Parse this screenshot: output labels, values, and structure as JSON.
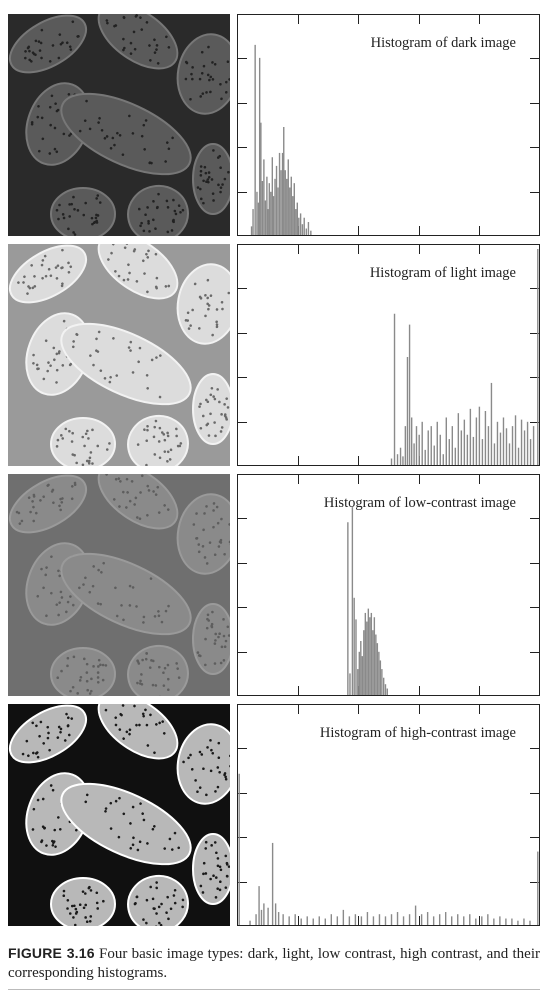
{
  "panels": [
    {
      "key": "dark",
      "title": "Histogram of dark image",
      "photo": {
        "bg": "#2a2a2a",
        "fill": "#5a5a5a",
        "edge": "#777777",
        "dots": "#222222"
      },
      "histogram": [
        {
          "x": 0.045,
          "h": 0.04
        },
        {
          "x": 0.05,
          "h": 0.12
        },
        {
          "x": 0.057,
          "h": 0.88
        },
        {
          "x": 0.063,
          "h": 0.2
        },
        {
          "x": 0.068,
          "h": 0.15
        },
        {
          "x": 0.072,
          "h": 0.82
        },
        {
          "x": 0.076,
          "h": 0.52
        },
        {
          "x": 0.081,
          "h": 0.25
        },
        {
          "x": 0.086,
          "h": 0.35
        },
        {
          "x": 0.091,
          "h": 0.16
        },
        {
          "x": 0.096,
          "h": 0.27
        },
        {
          "x": 0.1,
          "h": 0.12
        },
        {
          "x": 0.104,
          "h": 0.24
        },
        {
          "x": 0.109,
          "h": 0.2
        },
        {
          "x": 0.114,
          "h": 0.36
        },
        {
          "x": 0.118,
          "h": 0.18
        },
        {
          "x": 0.123,
          "h": 0.26
        },
        {
          "x": 0.128,
          "h": 0.32
        },
        {
          "x": 0.133,
          "h": 0.22
        },
        {
          "x": 0.138,
          "h": 0.38
        },
        {
          "x": 0.143,
          "h": 0.3
        },
        {
          "x": 0.148,
          "h": 0.38
        },
        {
          "x": 0.152,
          "h": 0.5
        },
        {
          "x": 0.157,
          "h": 0.3
        },
        {
          "x": 0.162,
          "h": 0.26
        },
        {
          "x": 0.167,
          "h": 0.35
        },
        {
          "x": 0.172,
          "h": 0.22
        },
        {
          "x": 0.177,
          "h": 0.27
        },
        {
          "x": 0.182,
          "h": 0.18
        },
        {
          "x": 0.187,
          "h": 0.24
        },
        {
          "x": 0.192,
          "h": 0.12
        },
        {
          "x": 0.197,
          "h": 0.15
        },
        {
          "x": 0.202,
          "h": 0.08
        },
        {
          "x": 0.208,
          "h": 0.1
        },
        {
          "x": 0.214,
          "h": 0.05
        },
        {
          "x": 0.22,
          "h": 0.08
        },
        {
          "x": 0.227,
          "h": 0.03
        },
        {
          "x": 0.234,
          "h": 0.06
        },
        {
          "x": 0.242,
          "h": 0.02
        }
      ]
    },
    {
      "key": "light",
      "title": "Histogram of light image",
      "photo": {
        "bg": "#9a9a9a",
        "fill": "#dcdcdc",
        "edge": "#f2f2f2",
        "dots": "#6a6a6a"
      },
      "histogram": [
        {
          "x": 0.51,
          "h": 0.03
        },
        {
          "x": 0.52,
          "h": 0.7
        },
        {
          "x": 0.53,
          "h": 0.05
        },
        {
          "x": 0.54,
          "h": 0.08
        },
        {
          "x": 0.548,
          "h": 0.04
        },
        {
          "x": 0.556,
          "h": 0.18
        },
        {
          "x": 0.563,
          "h": 0.5
        },
        {
          "x": 0.57,
          "h": 0.65
        },
        {
          "x": 0.577,
          "h": 0.22
        },
        {
          "x": 0.585,
          "h": 0.1
        },
        {
          "x": 0.593,
          "h": 0.18
        },
        {
          "x": 0.602,
          "h": 0.14
        },
        {
          "x": 0.612,
          "h": 0.2
        },
        {
          "x": 0.622,
          "h": 0.07
        },
        {
          "x": 0.632,
          "h": 0.16
        },
        {
          "x": 0.642,
          "h": 0.18
        },
        {
          "x": 0.652,
          "h": 0.09
        },
        {
          "x": 0.662,
          "h": 0.2
        },
        {
          "x": 0.672,
          "h": 0.14
        },
        {
          "x": 0.682,
          "h": 0.05
        },
        {
          "x": 0.692,
          "h": 0.22
        },
        {
          "x": 0.702,
          "h": 0.12
        },
        {
          "x": 0.712,
          "h": 0.18
        },
        {
          "x": 0.722,
          "h": 0.08
        },
        {
          "x": 0.732,
          "h": 0.24
        },
        {
          "x": 0.742,
          "h": 0.16
        },
        {
          "x": 0.752,
          "h": 0.21
        },
        {
          "x": 0.762,
          "h": 0.14
        },
        {
          "x": 0.772,
          "h": 0.26
        },
        {
          "x": 0.782,
          "h": 0.13
        },
        {
          "x": 0.792,
          "h": 0.22
        },
        {
          "x": 0.802,
          "h": 0.27
        },
        {
          "x": 0.812,
          "h": 0.12
        },
        {
          "x": 0.822,
          "h": 0.25
        },
        {
          "x": 0.832,
          "h": 0.18
        },
        {
          "x": 0.842,
          "h": 0.38
        },
        {
          "x": 0.852,
          "h": 0.1
        },
        {
          "x": 0.862,
          "h": 0.2
        },
        {
          "x": 0.872,
          "h": 0.15
        },
        {
          "x": 0.882,
          "h": 0.22
        },
        {
          "x": 0.892,
          "h": 0.17
        },
        {
          "x": 0.902,
          "h": 0.1
        },
        {
          "x": 0.912,
          "h": 0.18
        },
        {
          "x": 0.922,
          "h": 0.23
        },
        {
          "x": 0.932,
          "h": 0.08
        },
        {
          "x": 0.942,
          "h": 0.21
        },
        {
          "x": 0.952,
          "h": 0.16
        },
        {
          "x": 0.962,
          "h": 0.2
        },
        {
          "x": 0.972,
          "h": 0.12
        },
        {
          "x": 0.982,
          "h": 0.18
        },
        {
          "x": 0.996,
          "h": 1.0
        }
      ]
    },
    {
      "key": "low",
      "title": "Histogram of low-contrast image",
      "photo": {
        "bg": "#6f6f6f",
        "fill": "#8a8a8a",
        "edge": "#9a9a9a",
        "dots": "#5e5e5e"
      },
      "histogram": [
        {
          "x": 0.365,
          "h": 0.8
        },
        {
          "x": 0.372,
          "h": 0.1
        },
        {
          "x": 0.38,
          "h": 0.87
        },
        {
          "x": 0.386,
          "h": 0.45
        },
        {
          "x": 0.392,
          "h": 0.35
        },
        {
          "x": 0.398,
          "h": 0.12
        },
        {
          "x": 0.403,
          "h": 0.2
        },
        {
          "x": 0.408,
          "h": 0.25
        },
        {
          "x": 0.413,
          "h": 0.18
        },
        {
          "x": 0.418,
          "h": 0.3
        },
        {
          "x": 0.423,
          "h": 0.38
        },
        {
          "x": 0.428,
          "h": 0.34
        },
        {
          "x": 0.433,
          "h": 0.4
        },
        {
          "x": 0.438,
          "h": 0.36
        },
        {
          "x": 0.443,
          "h": 0.38
        },
        {
          "x": 0.448,
          "h": 0.3
        },
        {
          "x": 0.453,
          "h": 0.36
        },
        {
          "x": 0.458,
          "h": 0.28
        },
        {
          "x": 0.463,
          "h": 0.24
        },
        {
          "x": 0.468,
          "h": 0.2
        },
        {
          "x": 0.473,
          "h": 0.16
        },
        {
          "x": 0.478,
          "h": 0.12
        },
        {
          "x": 0.484,
          "h": 0.08
        },
        {
          "x": 0.49,
          "h": 0.05
        },
        {
          "x": 0.496,
          "h": 0.03
        }
      ]
    },
    {
      "key": "high",
      "title": "Histogram of high-contrast image",
      "photo": {
        "bg": "#101010",
        "fill": "#b8b8b8",
        "edge": "#ffffff",
        "dots": "#1a1a1a"
      },
      "histogram": [
        {
          "x": 0.004,
          "h": 0.7
        },
        {
          "x": 0.04,
          "h": 0.02
        },
        {
          "x": 0.06,
          "h": 0.05
        },
        {
          "x": 0.07,
          "h": 0.18
        },
        {
          "x": 0.078,
          "h": 0.07
        },
        {
          "x": 0.086,
          "h": 0.1
        },
        {
          "x": 0.1,
          "h": 0.08
        },
        {
          "x": 0.115,
          "h": 0.38
        },
        {
          "x": 0.125,
          "h": 0.1
        },
        {
          "x": 0.135,
          "h": 0.06
        },
        {
          "x": 0.15,
          "h": 0.05
        },
        {
          "x": 0.17,
          "h": 0.04
        },
        {
          "x": 0.19,
          "h": 0.05
        },
        {
          "x": 0.21,
          "h": 0.03
        },
        {
          "x": 0.23,
          "h": 0.04
        },
        {
          "x": 0.25,
          "h": 0.03
        },
        {
          "x": 0.27,
          "h": 0.04
        },
        {
          "x": 0.29,
          "h": 0.03
        },
        {
          "x": 0.31,
          "h": 0.05
        },
        {
          "x": 0.33,
          "h": 0.04
        },
        {
          "x": 0.35,
          "h": 0.07
        },
        {
          "x": 0.37,
          "h": 0.04
        },
        {
          "x": 0.39,
          "h": 0.05
        },
        {
          "x": 0.41,
          "h": 0.04
        },
        {
          "x": 0.43,
          "h": 0.06
        },
        {
          "x": 0.45,
          "h": 0.04
        },
        {
          "x": 0.47,
          "h": 0.05
        },
        {
          "x": 0.49,
          "h": 0.04
        },
        {
          "x": 0.51,
          "h": 0.05
        },
        {
          "x": 0.53,
          "h": 0.06
        },
        {
          "x": 0.55,
          "h": 0.04
        },
        {
          "x": 0.57,
          "h": 0.05
        },
        {
          "x": 0.59,
          "h": 0.09
        },
        {
          "x": 0.61,
          "h": 0.05
        },
        {
          "x": 0.63,
          "h": 0.06
        },
        {
          "x": 0.65,
          "h": 0.04
        },
        {
          "x": 0.67,
          "h": 0.05
        },
        {
          "x": 0.69,
          "h": 0.06
        },
        {
          "x": 0.71,
          "h": 0.04
        },
        {
          "x": 0.73,
          "h": 0.05
        },
        {
          "x": 0.75,
          "h": 0.04
        },
        {
          "x": 0.77,
          "h": 0.05
        },
        {
          "x": 0.79,
          "h": 0.03
        },
        {
          "x": 0.81,
          "h": 0.04
        },
        {
          "x": 0.83,
          "h": 0.05
        },
        {
          "x": 0.85,
          "h": 0.03
        },
        {
          "x": 0.87,
          "h": 0.04
        },
        {
          "x": 0.89,
          "h": 0.03
        },
        {
          "x": 0.91,
          "h": 0.03
        },
        {
          "x": 0.93,
          "h": 0.02
        },
        {
          "x": 0.95,
          "h": 0.03
        },
        {
          "x": 0.97,
          "h": 0.02
        },
        {
          "x": 0.996,
          "h": 0.34
        }
      ]
    }
  ],
  "caption": {
    "label": "FIGURE 3.16",
    "text": " Four basic image types: dark, light, low contrast, high contrast, and their corresponding histograms."
  },
  "colors": {
    "bar": "#8a8a8a",
    "frame": "#222222"
  }
}
